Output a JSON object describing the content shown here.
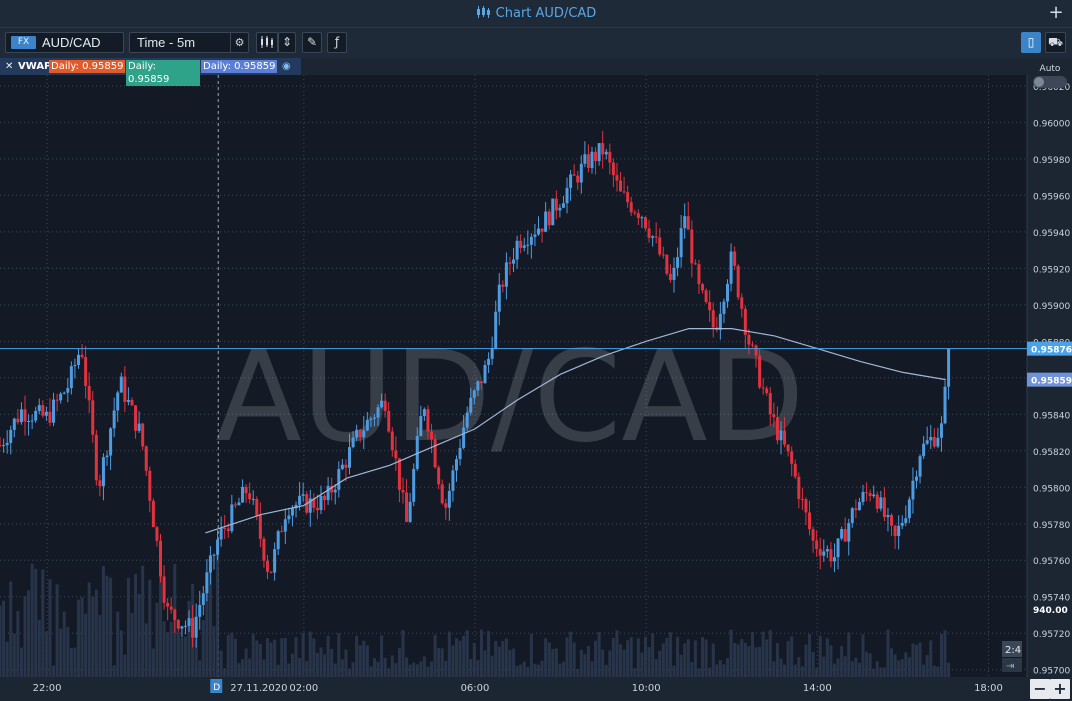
{
  "window": {
    "title": "Chart AUD/CAD"
  },
  "toolbar": {
    "symbol_badge": "FX",
    "symbol": "AUD/CAD",
    "timeframe": "Time - 5m"
  },
  "indicator": {
    "name": "VWAP",
    "values": [
      "Daily: 0.95859",
      "Daily: 0.95859",
      "Daily: 0.95859"
    ],
    "colors": [
      "#e05a2a",
      "#2fa389",
      "#5b7fd6"
    ]
  },
  "auto_toggle": {
    "label": "Auto",
    "on": false
  },
  "colors": {
    "background": "#131a25",
    "up": "#4f9be0",
    "down": "#e0323f",
    "vwap": "#9fb7d6",
    "price_line": "#4aa3e8",
    "accent": "#3b84c9"
  },
  "chart_data": {
    "type": "candlestick",
    "watermark": "AUD/CAD",
    "y_ticks": [
      "0.96020",
      "0.96000",
      "0.95980",
      "0.95960",
      "0.95940",
      "0.95920",
      "0.95900",
      "0.95880",
      "0.95860",
      "0.95840",
      "0.95820",
      "0.95800",
      "0.95780",
      "0.95760",
      "0.95740",
      "0.95720",
      "0.95700"
    ],
    "ylim": [
      0.95696,
      0.96026
    ],
    "x_ticks": [
      {
        "label": "22:00",
        "h": -4
      },
      {
        "label": "27.11.2020",
        "h": 0
      },
      {
        "label": "02:00",
        "h": 2
      },
      {
        "label": "06:00",
        "h": 6
      },
      {
        "label": "10:00",
        "h": 10
      },
      {
        "label": "14:00",
        "h": 14
      },
      {
        "label": "18:00",
        "h": 18
      }
    ],
    "xlim_hours": [
      -5.1,
      18.9
    ],
    "day_marker": "D",
    "last_price": "0.95876",
    "last_price_value": 0.95876,
    "vwap_label": "0.95859",
    "vwap_value": 0.95859,
    "volume_label": "940.00",
    "countdown": "2:4",
    "anchors": [
      {
        "h": -5.1,
        "p": 0.95823
      },
      {
        "h": -4.6,
        "p": 0.95842
      },
      {
        "h": -4.0,
        "p": 0.95838
      },
      {
        "h": -3.5,
        "p": 0.95856
      },
      {
        "h": -3.2,
        "p": 0.95878
      },
      {
        "h": -2.8,
        "p": 0.958
      },
      {
        "h": -2.3,
        "p": 0.95858
      },
      {
        "h": -1.8,
        "p": 0.95828
      },
      {
        "h": -1.2,
        "p": 0.95732
      },
      {
        "h": -0.6,
        "p": 0.95722
      },
      {
        "h": 0.0,
        "p": 0.95772
      },
      {
        "h": 0.7,
        "p": 0.958
      },
      {
        "h": 1.2,
        "p": 0.95752
      },
      {
        "h": 1.6,
        "p": 0.9579
      },
      {
        "h": 2.5,
        "p": 0.95792
      },
      {
        "h": 3.3,
        "p": 0.9583
      },
      {
        "h": 3.9,
        "p": 0.95848
      },
      {
        "h": 4.4,
        "p": 0.9578
      },
      {
        "h": 4.8,
        "p": 0.95848
      },
      {
        "h": 5.3,
        "p": 0.95788
      },
      {
        "h": 5.8,
        "p": 0.9584
      },
      {
        "h": 6.3,
        "p": 0.95868
      },
      {
        "h": 6.6,
        "p": 0.9591
      },
      {
        "h": 7.0,
        "p": 0.95935
      },
      {
        "h": 7.6,
        "p": 0.95945
      },
      {
        "h": 8.2,
        "p": 0.95965
      },
      {
        "h": 8.6,
        "p": 0.95978
      },
      {
        "h": 9.0,
        "p": 0.95985
      },
      {
        "h": 9.4,
        "p": 0.9596
      },
      {
        "h": 9.9,
        "p": 0.9595
      },
      {
        "h": 10.2,
        "p": 0.95935
      },
      {
        "h": 10.6,
        "p": 0.9591
      },
      {
        "h": 10.9,
        "p": 0.9595
      },
      {
        "h": 11.2,
        "p": 0.9591
      },
      {
        "h": 11.6,
        "p": 0.95886
      },
      {
        "h": 12.0,
        "p": 0.95926
      },
      {
        "h": 12.4,
        "p": 0.9588
      },
      {
        "h": 12.9,
        "p": 0.9584
      },
      {
        "h": 13.4,
        "p": 0.95812
      },
      {
        "h": 13.9,
        "p": 0.9577
      },
      {
        "h": 14.4,
        "p": 0.95762
      },
      {
        "h": 14.9,
        "p": 0.9579
      },
      {
        "h": 15.3,
        "p": 0.958
      },
      {
        "h": 15.8,
        "p": 0.9577
      },
      {
        "h": 16.1,
        "p": 0.9579
      },
      {
        "h": 16.4,
        "p": 0.9582
      },
      {
        "h": 16.9,
        "p": 0.95832
      },
      {
        "h": 17.1,
        "p": 0.95876
      }
    ],
    "vwap_path": [
      {
        "h": -0.3,
        "p": 0.95775
      },
      {
        "h": 1.0,
        "p": 0.95785
      },
      {
        "h": 2.0,
        "p": 0.9579
      },
      {
        "h": 3.0,
        "p": 0.95805
      },
      {
        "h": 4.0,
        "p": 0.95812
      },
      {
        "h": 5.0,
        "p": 0.95822
      },
      {
        "h": 6.0,
        "p": 0.95832
      },
      {
        "h": 7.0,
        "p": 0.95848
      },
      {
        "h": 8.0,
        "p": 0.95862
      },
      {
        "h": 9.0,
        "p": 0.95872
      },
      {
        "h": 10.0,
        "p": 0.9588
      },
      {
        "h": 11.0,
        "p": 0.95887
      },
      {
        "h": 12.0,
        "p": 0.95887
      },
      {
        "h": 13.0,
        "p": 0.95883
      },
      {
        "h": 14.0,
        "p": 0.95876
      },
      {
        "h": 15.0,
        "p": 0.95869
      },
      {
        "h": 16.0,
        "p": 0.95863
      },
      {
        "h": 17.0,
        "p": 0.95859
      }
    ]
  }
}
